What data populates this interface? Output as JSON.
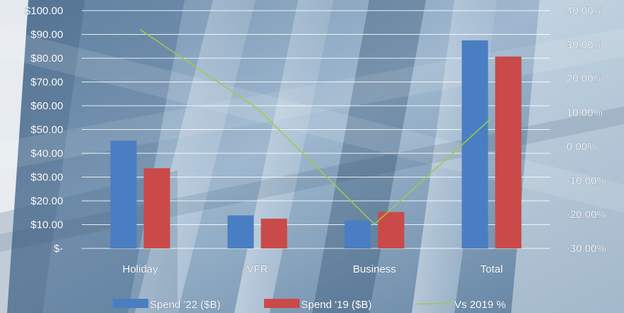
{
  "chart_data": {
    "type": "bar",
    "title": "",
    "xlabel": "",
    "ylabel": "",
    "categories": [
      "Holiday",
      "VFR",
      "Business",
      "Total"
    ],
    "series": [
      {
        "name": "Spend '22 ($B)",
        "kind": "bar",
        "axis": "left",
        "color": "#4a7ec2",
        "values": [
          45.3,
          13.9,
          11.8,
          87.5
        ]
      },
      {
        "name": "Spend '19 ($B)",
        "kind": "bar",
        "axis": "left",
        "color": "#c94a48",
        "values": [
          33.7,
          12.5,
          15.3,
          80.7
        ]
      },
      {
        "name": "Vs 2019 %",
        "kind": "line",
        "axis": "right",
        "color": "#9acd4a",
        "values": [
          34.4,
          11.2,
          -22.9,
          8.4
        ]
      }
    ],
    "left_axis": {
      "ylim": [
        0,
        100
      ],
      "ticks": [
        0,
        10,
        20,
        30,
        40,
        50,
        60,
        70,
        80,
        90,
        100
      ],
      "tick_labels": [
        "$-",
        "$10.00",
        "$20.00",
        "$30.00",
        "$40.00",
        "$50.00",
        "$60.00",
        "$70.00",
        "$80.00",
        "$90.00",
        "$100.00"
      ]
    },
    "right_axis": {
      "ylim": [
        -30,
        40
      ],
      "ticks": [
        -30,
        -20,
        -10,
        0,
        10,
        20,
        30,
        40
      ],
      "tick_labels": [
        "-30.00%",
        "-20.00%",
        "-10.00%",
        "0.00%",
        "10.00%",
        "20.00%",
        "30.00%",
        "40.00%"
      ]
    },
    "grid": true,
    "legend_position": "bottom",
    "colors": {
      "text": "#ffffff",
      "text_halo": "#556b86",
      "gridline": "#ffffff"
    }
  }
}
